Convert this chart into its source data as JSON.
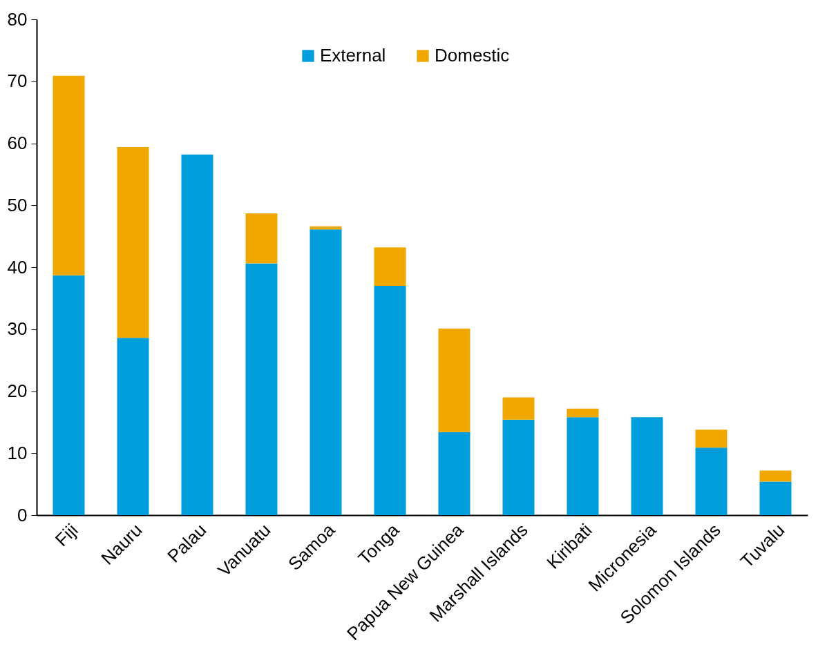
{
  "chart_data": {
    "type": "bar",
    "stacked": true,
    "categories": [
      "Fiji",
      "Nauru",
      "Palau",
      "Vanuatu",
      "Samoa",
      "Tonga",
      "Papua New Guinea",
      "Marshall Islands",
      "Kiribati",
      "Micronesia",
      "Solomon Islands",
      "Tuvalu"
    ],
    "series": [
      {
        "name": "External",
        "color": "#009ddc",
        "values": [
          38.7,
          28.6,
          58.2,
          40.6,
          46.1,
          37.0,
          13.4,
          15.4,
          15.8,
          15.8,
          10.9,
          5.4
        ]
      },
      {
        "name": "Domestic",
        "color": "#f0a800",
        "values": [
          32.2,
          30.8,
          0,
          8.1,
          0.5,
          6.2,
          16.7,
          3.6,
          1.4,
          0,
          2.9,
          1.8
        ]
      }
    ],
    "ylim": [
      0,
      80
    ],
    "yticks": [
      0,
      10,
      20,
      30,
      40,
      50,
      60,
      70,
      80
    ],
    "grid": false,
    "legend": "top"
  }
}
